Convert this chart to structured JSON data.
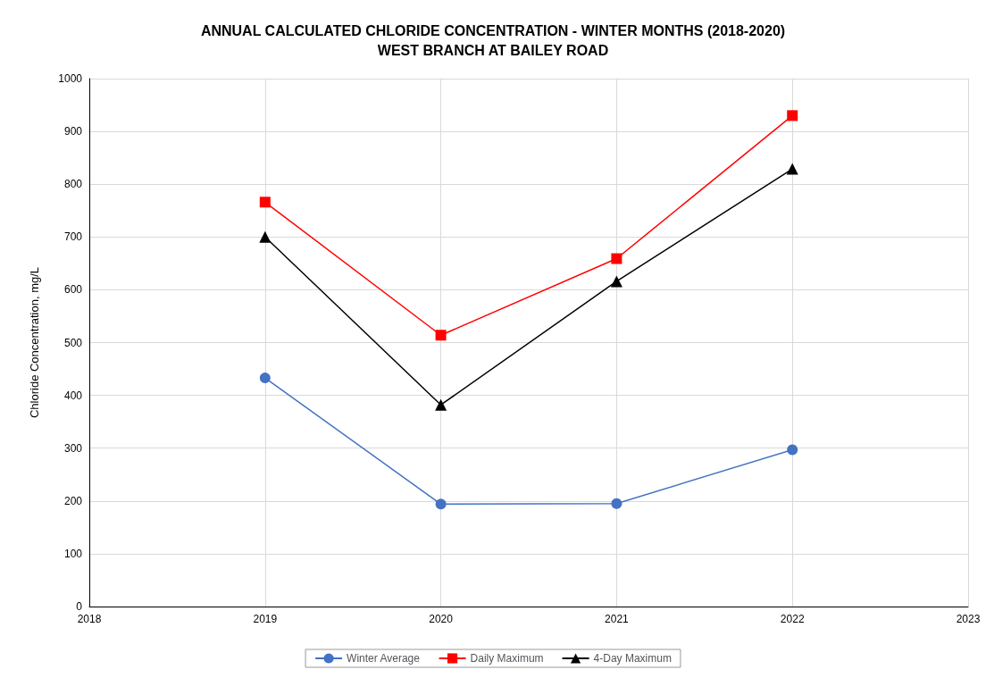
{
  "chart_data": {
    "type": "line",
    "title": "ANNUAL CALCULATED CHLORIDE CONCENTRATION - WINTER MONTHS (2018-2020)\nWEST BRANCH AT BAILEY ROAD",
    "ylabel": "Chloride Concentration, mg/L",
    "x": [
      2019,
      2020,
      2021,
      2022
    ],
    "series": [
      {
        "name": "Winter Average",
        "color": "#4472c4",
        "marker": "circle",
        "values": [
          433,
          194,
          195,
          297
        ]
      },
      {
        "name": "Daily Maximum",
        "color": "#ff0000",
        "marker": "square",
        "values": [
          766,
          514,
          659,
          930
        ]
      },
      {
        "name": "4-Day Maximum",
        "color": "#000000",
        "marker": "triangle",
        "values": [
          700,
          382,
          616,
          829
        ]
      }
    ],
    "xlim": [
      2018,
      2023
    ],
    "xticks": [
      2018,
      2019,
      2020,
      2021,
      2022,
      2023
    ],
    "ylim": [
      0,
      1000
    ],
    "yticks": [
      0,
      100,
      200,
      300,
      400,
      500,
      600,
      700,
      800,
      900,
      1000
    ],
    "grid": true,
    "legend": "bottom"
  }
}
